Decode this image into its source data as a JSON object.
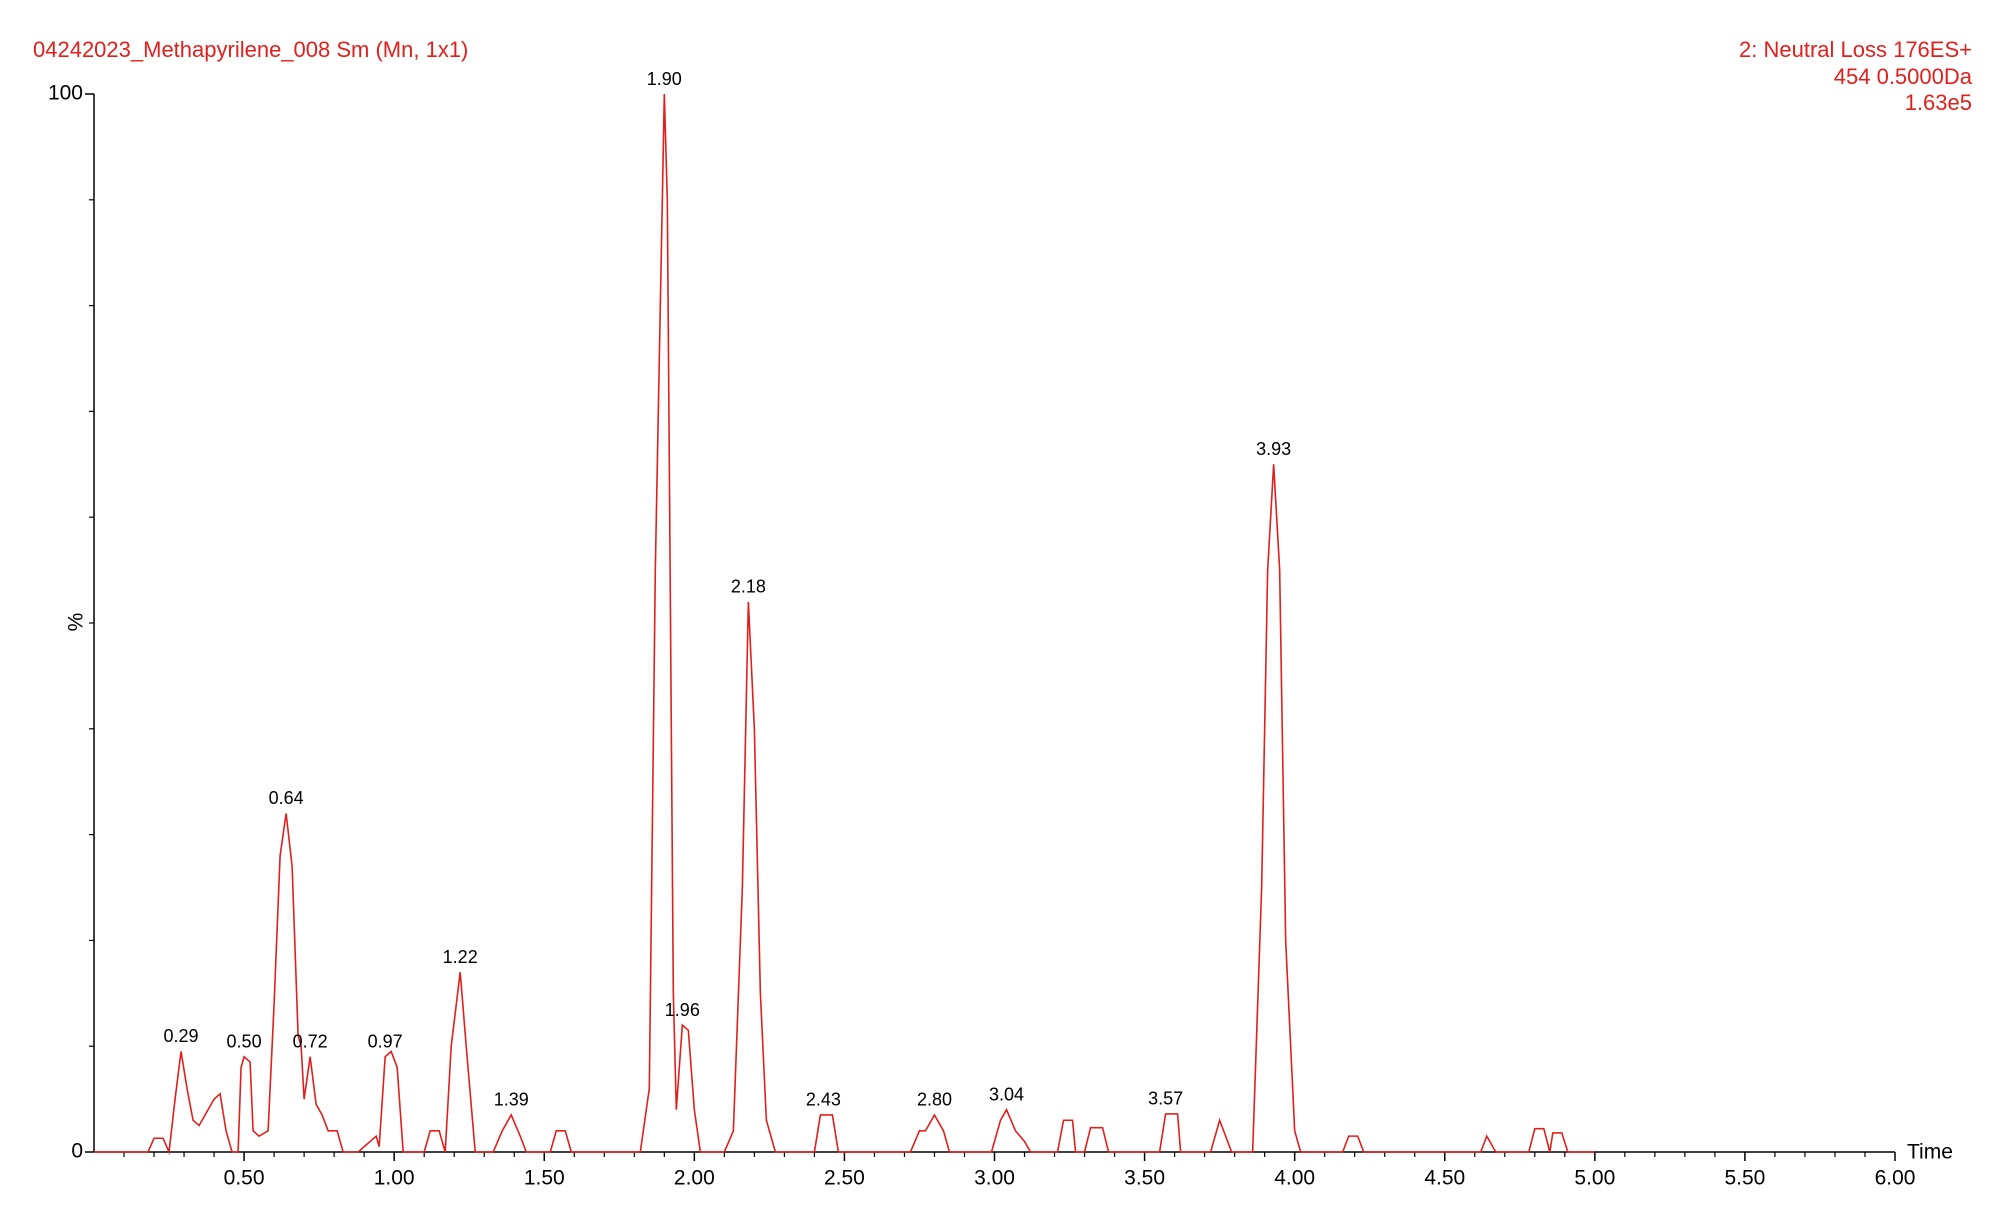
{
  "chart_data": {
    "type": "line",
    "title": "04242023_Methapyrilene_008 Sm (Mn, 1x1)",
    "subtitle": [
      "2: Neutral Loss 176ES+",
      "454 0.5000Da",
      "1.63e5"
    ],
    "x_label": "Time",
    "y_label": "%",
    "color": "#e0201c",
    "xlim": [
      0,
      6
    ],
    "ylim": [
      0,
      100
    ],
    "xticks": [
      {
        "value": 0.5,
        "label": "0.50"
      },
      {
        "value": 1,
        "label": "1.00"
      },
      {
        "value": 1.5,
        "label": "1.50"
      },
      {
        "value": 2,
        "label": "2.00"
      },
      {
        "value": 2.5,
        "label": "2.50"
      },
      {
        "value": 3,
        "label": "3.00"
      },
      {
        "value": 3.5,
        "label": "3.50"
      },
      {
        "value": 4,
        "label": "4.00"
      },
      {
        "value": 4.5,
        "label": "4.50"
      },
      {
        "value": 5,
        "label": "5.00"
      },
      {
        "value": 5.5,
        "label": "5.50"
      },
      {
        "value": 6,
        "label": "6.00"
      }
    ],
    "yticks": [
      0,
      100
    ],
    "yminorticks": [
      10,
      20,
      30,
      40,
      50,
      60,
      70,
      80,
      90
    ],
    "xminorticks": [
      0.1,
      0.2,
      0.3,
      0.4,
      0.6,
      0.7,
      0.8,
      0.9,
      1.1,
      1.2,
      1.3,
      1.4,
      1.6,
      1.7,
      1.8,
      1.9,
      2.1,
      2.2,
      2.3,
      2.4,
      2.6,
      2.7,
      2.8,
      2.9,
      3.1,
      3.2,
      3.3,
      3.4,
      3.6,
      3.7,
      3.8,
      3.9,
      4.1,
      4.2,
      4.3,
      4.4,
      4.6,
      4.7,
      4.8,
      4.9,
      5.1,
      5.2,
      5.3,
      5.4,
      5.6,
      5.7,
      5.8,
      5.9
    ],
    "x": [
      0,
      0.18,
      0.2,
      0.23,
      0.25,
      0.27,
      0.29,
      0.31,
      0.33,
      0.35,
      0.37,
      0.4,
      0.42,
      0.44,
      0.46,
      0.48,
      0.49,
      0.5,
      0.52,
      0.53,
      0.55,
      0.58,
      0.6,
      0.62,
      0.64,
      0.66,
      0.68,
      0.69,
      0.7,
      0.72,
      0.74,
      0.76,
      0.78,
      0.81,
      0.83,
      0.88,
      0.92,
      0.94,
      0.95,
      0.97,
      0.99,
      1.01,
      1.03,
      1.1,
      1.12,
      1.15,
      1.17,
      1.19,
      1.22,
      1.24,
      1.27,
      1.33,
      1.36,
      1.39,
      1.42,
      1.44,
      1.52,
      1.54,
      1.57,
      1.59,
      1.82,
      1.85,
      1.87,
      1.9,
      1.91,
      1.93,
      1.94,
      1.96,
      1.98,
      2,
      2.02,
      2.1,
      2.13,
      2.16,
      2.18,
      2.2,
      2.22,
      2.24,
      2.27,
      2.4,
      2.42,
      2.46,
      2.48,
      2.72,
      2.75,
      2.77,
      2.8,
      2.83,
      2.85,
      2.99,
      3.02,
      3.04,
      3.07,
      3.1,
      3.12,
      3.21,
      3.23,
      3.26,
      3.27,
      3.3,
      3.32,
      3.36,
      3.38,
      3.55,
      3.57,
      3.61,
      3.62,
      3.72,
      3.75,
      3.79,
      3.86,
      3.89,
      3.91,
      3.93,
      3.95,
      3.97,
      4,
      4.02,
      4.16,
      4.18,
      4.21,
      4.23,
      4.62,
      4.64,
      4.67,
      4.78,
      4.8,
      4.83,
      4.85,
      4.86,
      4.89,
      4.91,
      5
    ],
    "values": [
      0,
      0,
      1.3,
      1.3,
      0,
      5,
      9.5,
      6,
      3,
      2.5,
      3.5,
      5,
      5.5,
      2,
      0,
      0,
      8,
      9,
      8.5,
      2,
      1.5,
      2,
      14,
      28,
      32,
      27,
      11,
      10,
      5,
      9,
      4.5,
      3.5,
      2,
      2,
      0,
      0,
      1,
      1.5,
      0.5,
      9,
      9.5,
      8,
      0,
      0,
      2,
      2,
      0,
      10,
      17,
      10,
      0,
      0,
      2,
      3.5,
      1.5,
      0,
      0,
      2,
      2,
      0,
      0,
      6,
      55,
      100,
      90,
      15,
      4,
      12,
      11.5,
      4,
      0,
      0,
      2,
      25,
      52,
      40,
      15,
      3,
      0,
      0,
      3.5,
      3.5,
      0,
      0,
      2,
      2,
      3.5,
      2,
      0,
      0,
      3,
      4,
      2,
      1,
      0,
      0,
      3,
      3,
      0,
      0,
      2.3,
      2.3,
      0,
      0,
      3.6,
      3.6,
      0,
      0,
      3,
      0,
      0,
      25,
      55,
      65,
      55,
      20,
      2,
      0,
      0,
      1.5,
      1.5,
      0,
      0,
      1.5,
      0,
      0,
      2.2,
      2.2,
      0,
      1.8,
      1.8,
      0,
      0
    ],
    "annotations": [
      {
        "x": 0.29,
        "y": 9.5,
        "label": "0.29"
      },
      {
        "x": 0.5,
        "y": 9,
        "label": "0.50"
      },
      {
        "x": 0.64,
        "y": 32,
        "label": "0.64"
      },
      {
        "x": 0.72,
        "y": 9,
        "label": "0.72"
      },
      {
        "x": 0.97,
        "y": 9,
        "label": "0.97"
      },
      {
        "x": 1.22,
        "y": 17,
        "label": "1.22"
      },
      {
        "x": 1.39,
        "y": 3.5,
        "label": "1.39"
      },
      {
        "x": 1.9,
        "y": 100,
        "label": "1.90"
      },
      {
        "x": 1.96,
        "y": 12,
        "label": "1.96"
      },
      {
        "x": 2.18,
        "y": 52,
        "label": "2.18"
      },
      {
        "x": 2.43,
        "y": 3.5,
        "label": "2.43"
      },
      {
        "x": 2.8,
        "y": 3.5,
        "label": "2.80"
      },
      {
        "x": 3.04,
        "y": 4,
        "label": "3.04"
      },
      {
        "x": 3.57,
        "y": 3.6,
        "label": "3.57"
      },
      {
        "x": 3.93,
        "y": 65,
        "label": "3.93"
      }
    ]
  }
}
